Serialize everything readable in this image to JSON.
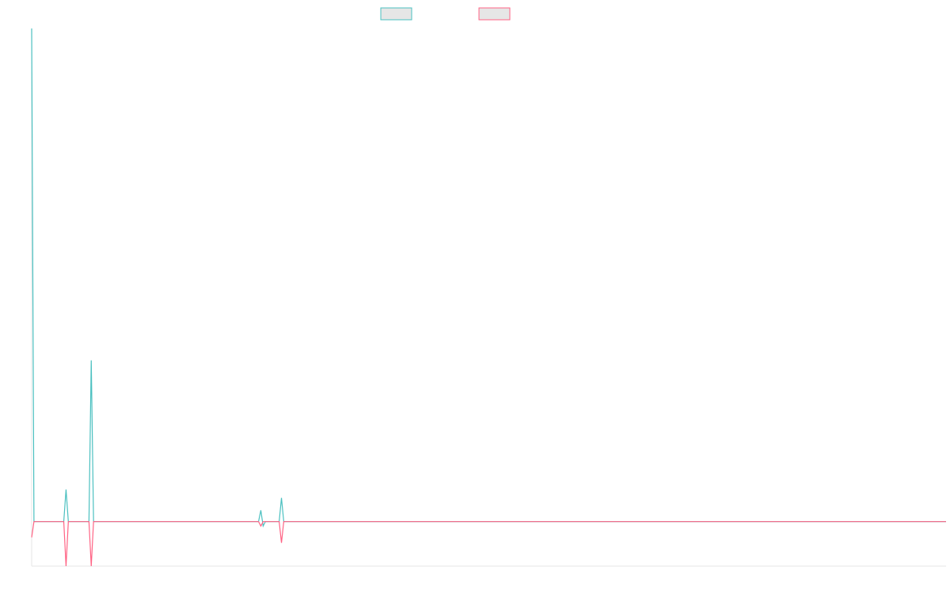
{
  "chart_data": {
    "type": "line",
    "title": "",
    "xlabel": "",
    "ylabel": "",
    "grid": false,
    "legend": {
      "placement": "top-center",
      "items": [
        {
          "label": "",
          "color": "#4bc0c0"
        },
        {
          "label": "",
          "color": "#ff6384"
        }
      ]
    },
    "colors": {
      "series1": "#4bc0c0",
      "series2": "#ff6384",
      "legend_fill": "#e6e6e6",
      "axis": "#e5e5e5",
      "background": "#ffffff"
    },
    "x_count": 400,
    "ylim": [
      -9.03,
      100
    ],
    "series": [
      {
        "color": "#4bc0c0",
        "points": [
          [
            0,
            100
          ],
          [
            1,
            0
          ],
          [
            15,
            6.5
          ],
          [
            26,
            32.7
          ],
          [
            100,
            2.3
          ],
          [
            101,
            -0.9
          ],
          [
            109,
            4.8
          ]
        ]
      },
      {
        "color": "#ff6384",
        "points": [
          [
            0,
            -3.2
          ],
          [
            1,
            0
          ],
          [
            15,
            -9.03
          ],
          [
            26,
            -9.03
          ],
          [
            100,
            -0.9
          ],
          [
            109,
            -4.3
          ]
        ]
      }
    ]
  }
}
